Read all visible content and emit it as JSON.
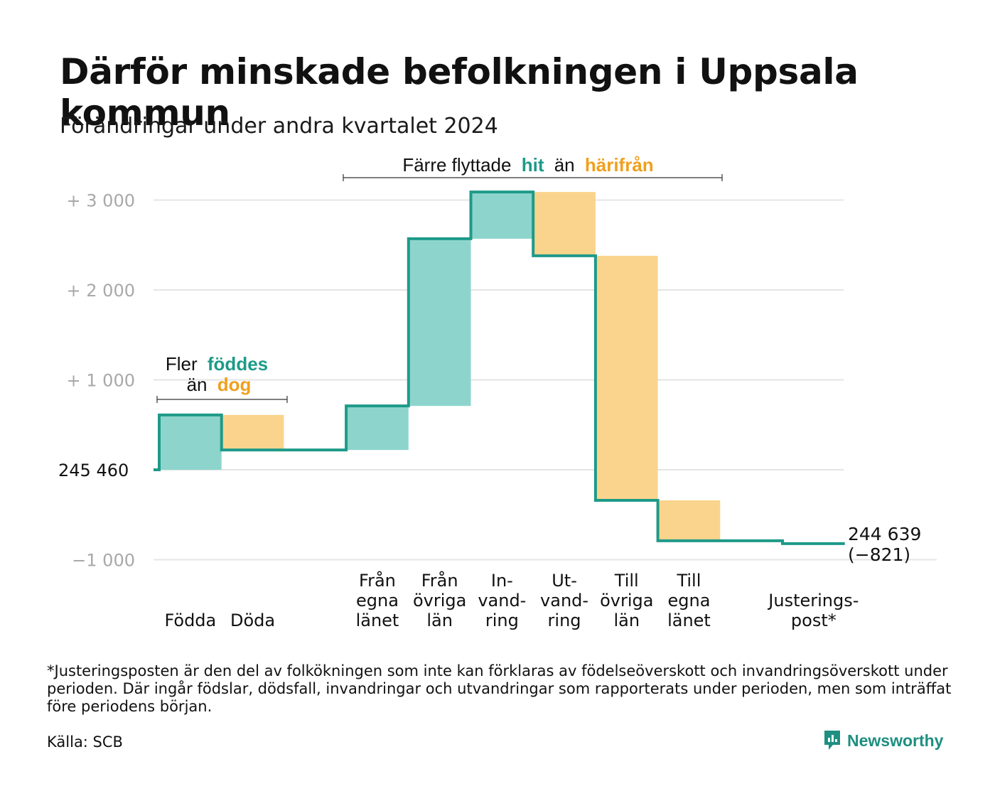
{
  "header": {
    "title": "Därför minskade befolkningen i Uppsala kommun",
    "subtitle": "Förändringar under andra kvartalet 2024"
  },
  "annotations": {
    "births_deaths": {
      "line1": "Fler",
      "teal": "föddes",
      "line2": "än",
      "orange": "dog"
    },
    "migration": {
      "prefix": "Färre flyttade",
      "teal": "hit",
      "middle": "än",
      "orange": "härifrån"
    }
  },
  "chart_data": {
    "type": "waterfall",
    "start_value": 245460,
    "start_label": "245  460",
    "end_label": "244 639",
    "end_change_label": "(−821)",
    "yticks": [
      {
        "value": 3000,
        "label": "+  3  000"
      },
      {
        "value": 2000,
        "label": "+  2  000"
      },
      {
        "value": 1000,
        "label": "+  1  000"
      },
      {
        "value": -1000,
        "label": "−1   000"
      }
    ],
    "ylim": [
      -1000,
      3000
    ],
    "grid": true,
    "steps": [
      {
        "label": [
          "Födda"
        ],
        "value": 610,
        "kind": "in"
      },
      {
        "label": [
          "Döda"
        ],
        "value": -390,
        "kind": "out"
      },
      {
        "label": [],
        "value": 0,
        "kind": "none"
      },
      {
        "label": [
          "Från",
          "egna",
          "länet"
        ],
        "value": 490,
        "kind": "in"
      },
      {
        "label": [
          "Från",
          "övriga",
          "län"
        ],
        "value": 1860,
        "kind": "in"
      },
      {
        "label": [
          "In-",
          "vand-",
          "ring"
        ],
        "value": 520,
        "kind": "in"
      },
      {
        "label": [
          "Ut-",
          "vand-",
          "ring"
        ],
        "value": -710,
        "kind": "out"
      },
      {
        "label": [
          "Till",
          "övriga",
          "län"
        ],
        "value": -2720,
        "kind": "out"
      },
      {
        "label": [
          "Till",
          "egna",
          "länet"
        ],
        "value": -450,
        "kind": "out"
      },
      {
        "label": [],
        "value": 0,
        "kind": "none"
      },
      {
        "label": [
          "Justerings-",
          "post*"
        ],
        "value": -31,
        "kind": "adjust"
      }
    ],
    "colors": {
      "in_fill": "#8dd5cc",
      "out_fill": "#fad48c",
      "line": "#1e9a89",
      "teal_text": "#1e9a89",
      "orange_text": "#f0a01e",
      "grid": "#e4e4e4",
      "tick_text": "#a8a8a8"
    }
  },
  "footer": {
    "footnote": "*Justeringsposten är den del av folkökningen som inte kan förklaras av födelseöverskott och invandringsöverskott under perioden. Där ingår födslar, dödsfall, invandringar och utvandringar som rapporterats under perioden, men som inträffat före periodens början.",
    "source": "Källa: SCB",
    "brand": "Newsworthy",
    "brand_icon": "newsworthy-logo-icon"
  }
}
